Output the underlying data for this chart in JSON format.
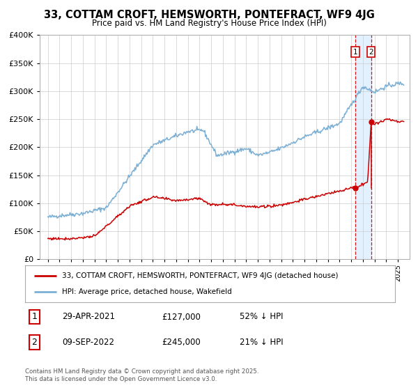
{
  "title": "33, COTTAM CROFT, HEMSWORTH, PONTEFRACT, WF9 4JG",
  "subtitle": "Price paid vs. HM Land Registry's House Price Index (HPI)",
  "legend_line1": "33, COTTAM CROFT, HEMSWORTH, PONTEFRACT, WF9 4JG (detached house)",
  "legend_line2": "HPI: Average price, detached house, Wakefield",
  "transaction1_date": "29-APR-2021",
  "transaction1_price": "£127,000",
  "transaction1_note": "52% ↓ HPI",
  "transaction2_date": "09-SEP-2022",
  "transaction2_price": "£245,000",
  "transaction2_note": "21% ↓ HPI",
  "footer": "Contains HM Land Registry data © Crown copyright and database right 2025.\nThis data is licensed under the Open Government Licence v3.0.",
  "red_color": "#cc0000",
  "blue_color": "#7bafd4",
  "background_color": "#ffffff",
  "grid_color": "#cccccc",
  "highlight_bg": "#ddeeff",
  "ylim": [
    0,
    400000
  ],
  "yticks": [
    0,
    50000,
    100000,
    150000,
    200000,
    250000,
    300000,
    350000,
    400000
  ],
  "year_start": 1995,
  "year_end": 2025,
  "transaction1_year": 2021.33,
  "transaction2_year": 2022.69
}
